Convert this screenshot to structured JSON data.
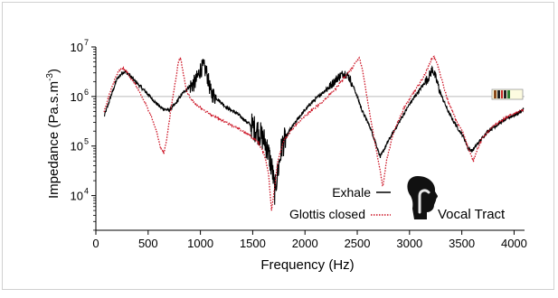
{
  "chart_data": {
    "type": "line",
    "xlabel": "Frequency (Hz)",
    "ylabel_main": "Impedance (Pa.s.m",
    "ylabel_sup": "-3",
    "ylabel_end": ")",
    "x_range": [
      0,
      4100
    ],
    "x_ticks": [
      0,
      500,
      1000,
      1500,
      2000,
      2500,
      3000,
      3500,
      4000
    ],
    "y_scale": "log",
    "y_range_log10": [
      3.3,
      7.0
    ],
    "y_ticks": [
      {
        "base": "10",
        "exp": "4",
        "value": 10000
      },
      {
        "base": "10",
        "exp": "5",
        "value": 100000
      },
      {
        "base": "10",
        "exp": "6",
        "value": 1000000
      },
      {
        "base": "10",
        "exp": "7",
        "value": 10000000
      }
    ],
    "reference_line_value": 1000000,
    "legend_position": "bottom-right",
    "annotation": "Vocal Tract",
    "colors": {
      "exhale": "#000000",
      "glottis_closed": "#cc1122",
      "reference": "#bbbbbb"
    },
    "series": [
      {
        "name": "Exhale",
        "style": "solid",
        "x": [
          80,
          150,
          200,
          250,
          280,
          320,
          400,
          500,
          560,
          620,
          660,
          700,
          760,
          820,
          880,
          950,
          1000,
          1030,
          1060,
          1100,
          1160,
          1250,
          1350,
          1450,
          1550,
          1620,
          1660,
          1690,
          1710,
          1740,
          1780,
          1850,
          1950,
          2050,
          2150,
          2250,
          2320,
          2380,
          2420,
          2480,
          2550,
          2620,
          2680,
          2720,
          2750,
          2800,
          2900,
          3000,
          3100,
          3180,
          3220,
          3250,
          3300,
          3380,
          3450,
          3520,
          3560,
          3600,
          3650,
          3750,
          3850,
          3950,
          4030,
          4090
        ],
        "y": [
          400000,
          1100000,
          2200000,
          3000000,
          3200000,
          2700000,
          1800000,
          1100000,
          800000,
          600000,
          550000,
          530000,
          700000,
          1100000,
          1500000,
          1900000,
          3500000,
          4000000,
          3000000,
          1200000,
          900000,
          600000,
          450000,
          300000,
          200000,
          120000,
          60000,
          30000,
          12000,
          30000,
          100000,
          200000,
          400000,
          700000,
          1100000,
          1700000,
          2500000,
          3000000,
          2500000,
          1300000,
          500000,
          250000,
          110000,
          60000,
          80000,
          130000,
          300000,
          700000,
          1400000,
          2400000,
          3600000,
          2400000,
          1100000,
          450000,
          250000,
          150000,
          90000,
          80000,
          110000,
          200000,
          280000,
          380000,
          450000,
          550000
        ]
      },
      {
        "name": "Glottis closed",
        "style": "dotted",
        "x": [
          80,
          130,
          180,
          220,
          260,
          300,
          380,
          450,
          520,
          580,
          620,
          650,
          680,
          720,
          760,
          790,
          810,
          830,
          870,
          950,
          1050,
          1150,
          1250,
          1350,
          1450,
          1550,
          1610,
          1650,
          1680,
          1710,
          1740,
          1800,
          1900,
          2000,
          2100,
          2200,
          2300,
          2380,
          2440,
          2490,
          2520,
          2550,
          2600,
          2660,
          2710,
          2745,
          2780,
          2850,
          2950,
          3050,
          3120,
          3170,
          3200,
          3230,
          3260,
          3300,
          3360,
          3440,
          3520,
          3570,
          3610,
          3650,
          3700,
          3800,
          3900,
          4000,
          4090
        ],
        "y": [
          500000,
          1100000,
          2200000,
          3300000,
          3700000,
          3000000,
          1700000,
          900000,
          450000,
          200000,
          90000,
          70000,
          150000,
          600000,
          2000000,
          5000000,
          6000000,
          3500000,
          1200000,
          700000,
          500000,
          380000,
          300000,
          230000,
          180000,
          120000,
          70000,
          30000,
          5000,
          15000,
          50000,
          130000,
          250000,
          400000,
          600000,
          900000,
          1500000,
          2500000,
          3500000,
          5000000,
          6000000,
          3500000,
          800000,
          150000,
          40000,
          15000,
          50000,
          200000,
          600000,
          1300000,
          2200000,
          3500000,
          5000000,
          6500000,
          5000000,
          2500000,
          900000,
          350000,
          170000,
          80000,
          50000,
          90000,
          150000,
          250000,
          350000,
          450000,
          550000
        ]
      }
    ]
  }
}
